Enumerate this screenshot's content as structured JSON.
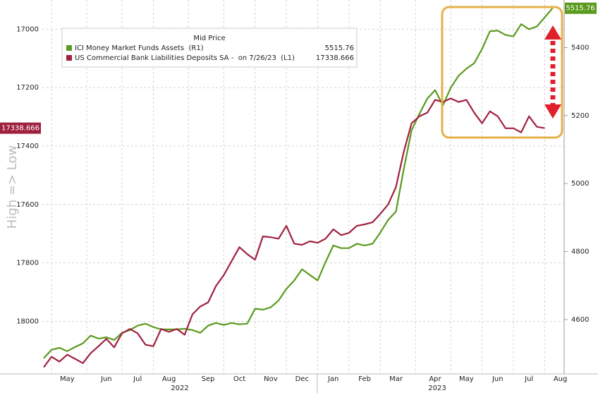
{
  "chart_data": {
    "type": "line",
    "y_axis_label": "High => Low",
    "legend_title": "Mid Price",
    "x": [
      null,
      null,
      null,
      "May",
      null,
      null,
      null,
      null,
      "Jun",
      null,
      null,
      null,
      "Jul",
      null,
      null,
      null,
      "Aug",
      null,
      null,
      null,
      null,
      "Sep",
      null,
      null,
      null,
      "Oct",
      null,
      null,
      null,
      "Nov",
      null,
      null,
      null,
      "Dec",
      null,
      null,
      null,
      "Jan",
      null,
      null,
      null,
      "Feb",
      null,
      null,
      null,
      "Mar",
      null,
      null,
      null,
      null,
      "Apr",
      null,
      null,
      null,
      "May",
      null,
      null,
      null,
      "Jun",
      null,
      null,
      null,
      "Jul",
      null,
      null,
      null,
      "Aug"
    ],
    "year_labels": [
      "2022",
      "2023"
    ],
    "series": [
      {
        "name": "ICI Money Market Funds Assets  (R1)",
        "color": "#5a9a1e",
        "axis": "y2",
        "values": [
          4486,
          4511,
          4517,
          4507,
          4519,
          4530,
          4553,
          4544,
          4548,
          4540,
          4561,
          4569,
          4582,
          4588,
          4578,
          4571,
          4571,
          4571,
          4573,
          4569,
          4561,
          4582,
          4590,
          4584,
          4590,
          4586,
          4588,
          4632,
          4629,
          4636,
          4656,
          4690,
          4715,
          4748,
          4731,
          4715,
          4769,
          4818,
          4810,
          4810,
          4823,
          4818,
          4823,
          4856,
          4893,
          4918,
          5043,
          5157,
          5205,
          5250,
          5275,
          5230,
          5282,
          5317,
          5338,
          5354,
          5396,
          5448,
          5450,
          5437,
          5433,
          5469,
          5454,
          5462,
          5489,
          5515.76,
          null
        ]
      },
      {
        "name": "US Commercial Bank Liabilities Deposits SA -  on 7/26/23  (L1)",
        "color": "#a0213f",
        "values": [
          18157,
          18121,
          18138,
          18114,
          18128,
          18143,
          18109,
          18085,
          18060,
          18089,
          18041,
          18026,
          18041,
          18080,
          18085,
          18026,
          18036,
          18026,
          18046,
          17976,
          17949,
          17935,
          17879,
          17842,
          17794,
          17746,
          17770,
          17789,
          17709,
          17712,
          17717,
          17673,
          17734,
          17738,
          17726,
          17731,
          17717,
          17685,
          17705,
          17697,
          17673,
          17668,
          17661,
          17632,
          17600,
          17540,
          17419,
          17322,
          17298,
          17286,
          17242,
          17249,
          17237,
          17249,
          17242,
          17286,
          17322,
          17281,
          17298,
          17339,
          17339,
          17353,
          17298,
          17334,
          17338.666,
          null,
          null
        ]
      }
    ],
    "ylim": [
      16900,
      18180
    ],
    "y_inverted": true,
    "yticks": [
      17000,
      17200,
      17400,
      17600,
      17800,
      18000
    ],
    "y2lim": [
      4440,
      5540
    ],
    "y2ticks": [
      4600,
      4800,
      5000,
      5200,
      5400
    ],
    "grid": true
  }
}
